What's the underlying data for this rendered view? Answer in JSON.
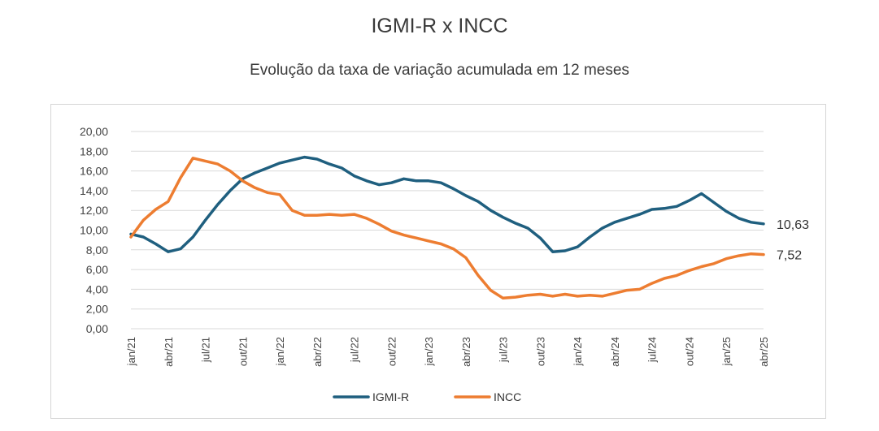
{
  "chart_data": {
    "type": "line",
    "title": "IGMI-R x INCC",
    "subtitle": "Evolução da taxa de variação acumulada em 12 meses",
    "xlabel": "",
    "ylabel": "",
    "ylim": [
      0,
      20
    ],
    "yticks": [
      "0,00",
      "2,00",
      "4,00",
      "6,00",
      "8,00",
      "10,00",
      "12,00",
      "14,00",
      "16,00",
      "18,00",
      "20,00"
    ],
    "grid": true,
    "legend_position": "bottom",
    "x": [
      "jan/21",
      "fev/21",
      "mar/21",
      "abr/21",
      "mai/21",
      "jun/21",
      "jul/21",
      "ago/21",
      "set/21",
      "out/21",
      "nov/21",
      "dez/21",
      "jan/22",
      "fev/22",
      "mar/22",
      "abr/22",
      "mai/22",
      "jun/22",
      "jul/22",
      "ago/22",
      "set/22",
      "out/22",
      "nov/22",
      "dez/22",
      "jan/23",
      "fev/23",
      "mar/23",
      "abr/23",
      "mai/23",
      "jun/23",
      "jul/23",
      "ago/23",
      "set/23",
      "out/23",
      "nov/23",
      "dez/23",
      "jan/24",
      "fev/24",
      "mar/24",
      "abr/24",
      "mai/24",
      "jun/24",
      "jul/24",
      "ago/24",
      "set/24",
      "out/24",
      "nov/24",
      "dez/24",
      "jan/25",
      "fev/25",
      "mar/25",
      "abr/25"
    ],
    "x_tick_labels": [
      {
        "i": 0,
        "label": "jan/21"
      },
      {
        "i": 3,
        "label": "abr/21"
      },
      {
        "i": 6,
        "label": "jul/21"
      },
      {
        "i": 9,
        "label": "out/21"
      },
      {
        "i": 12,
        "label": "jan/22"
      },
      {
        "i": 15,
        "label": "abr/22"
      },
      {
        "i": 18,
        "label": "jul/22"
      },
      {
        "i": 21,
        "label": "out/22"
      },
      {
        "i": 24,
        "label": "jan/23"
      },
      {
        "i": 27,
        "label": "abr/23"
      },
      {
        "i": 30,
        "label": "jul/23"
      },
      {
        "i": 33,
        "label": "out/23"
      },
      {
        "i": 36,
        "label": "jan/24"
      },
      {
        "i": 39,
        "label": "abr/24"
      },
      {
        "i": 42,
        "label": "jul/24"
      },
      {
        "i": 45,
        "label": "out/24"
      },
      {
        "i": 48,
        "label": "jan/25"
      },
      {
        "i": 51,
        "label": "abr/25"
      }
    ],
    "series": [
      {
        "name": "IGMI-R",
        "color": "#1f5f7f",
        "end_label": "10,63",
        "values": [
          9.6,
          9.3,
          8.6,
          7.8,
          8.1,
          9.3,
          11.0,
          12.6,
          14.0,
          15.2,
          15.8,
          16.3,
          16.8,
          17.1,
          17.4,
          17.2,
          16.7,
          16.3,
          15.5,
          15.0,
          14.6,
          14.8,
          15.2,
          15.0,
          15.0,
          14.8,
          14.2,
          13.5,
          12.9,
          12.0,
          11.3,
          10.7,
          10.2,
          9.2,
          7.8,
          7.9,
          8.3,
          9.3,
          10.2,
          10.8,
          11.2,
          11.6,
          12.1,
          12.2,
          12.4,
          13.0,
          13.7,
          12.8,
          11.9,
          11.2,
          10.8,
          10.63
        ]
      },
      {
        "name": "INCC",
        "color": "#ed7d31",
        "end_label": "7,52",
        "values": [
          9.3,
          11.0,
          12.1,
          12.9,
          15.3,
          17.3,
          17.0,
          16.7,
          16.0,
          15.0,
          14.3,
          13.8,
          13.6,
          12.0,
          11.5,
          11.5,
          11.6,
          11.5,
          11.6,
          11.2,
          10.6,
          9.9,
          9.5,
          9.2,
          8.9,
          8.6,
          8.1,
          7.2,
          5.4,
          3.9,
          3.1,
          3.2,
          3.4,
          3.5,
          3.3,
          3.5,
          3.3,
          3.4,
          3.3,
          3.6,
          3.9,
          4.0,
          4.6,
          5.1,
          5.4,
          5.9,
          6.3,
          6.6,
          7.1,
          7.4,
          7.6,
          7.52
        ]
      }
    ]
  }
}
